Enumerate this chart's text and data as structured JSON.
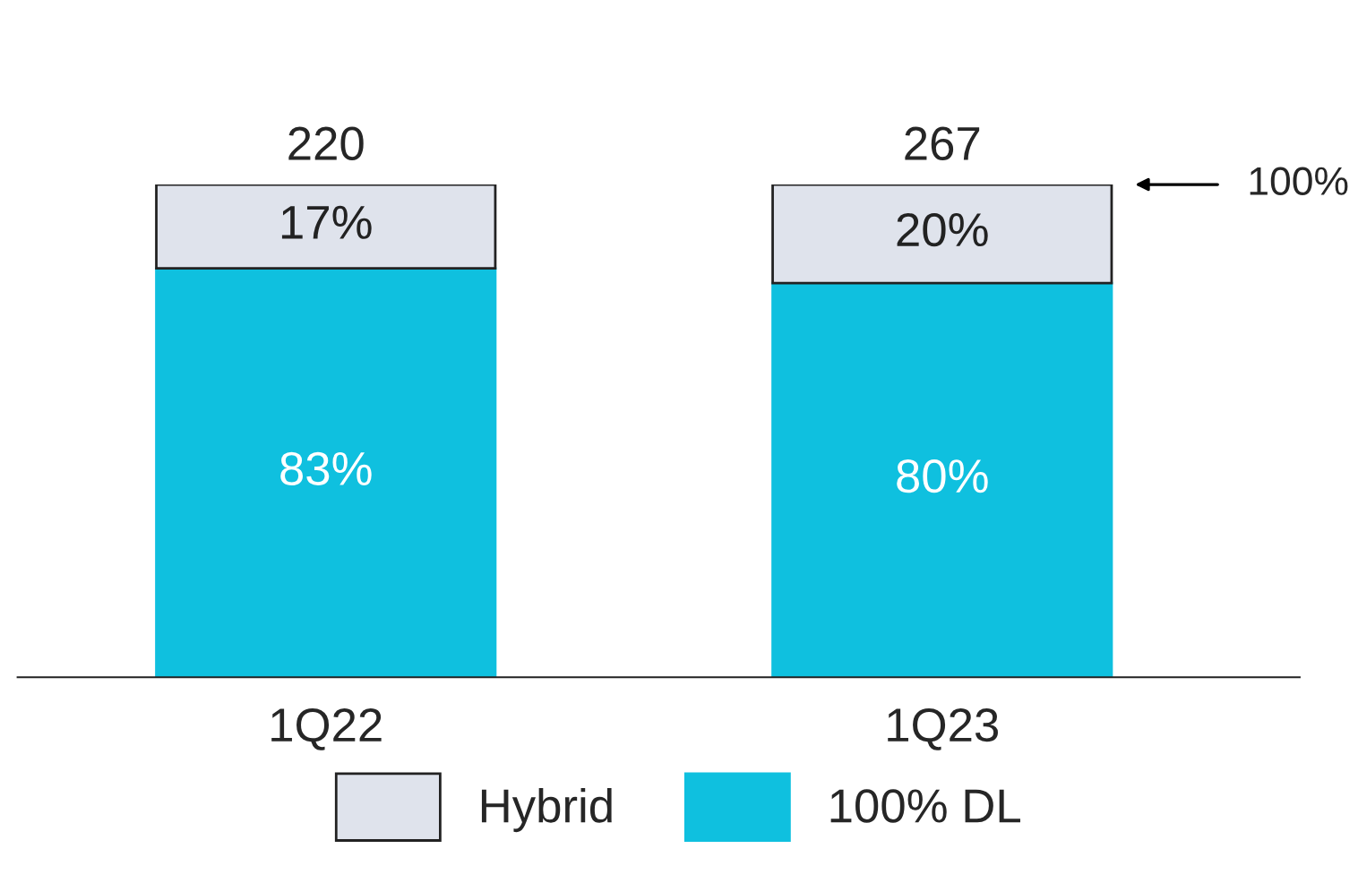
{
  "chart_data": {
    "type": "bar",
    "stacked": true,
    "categories": [
      "1Q22",
      "1Q23"
    ],
    "series": [
      {
        "name": "100% DL",
        "color": "#0fc0df",
        "values": [
          83,
          80
        ],
        "value_labels": [
          "83%",
          "80%"
        ]
      },
      {
        "name": "Hybrid",
        "color": "#dfe3ec",
        "values": [
          17,
          20
        ],
        "value_labels": [
          "17%",
          "20%"
        ]
      }
    ],
    "annotations": [
      {
        "text": "220",
        "x": "1Q22",
        "y": 100
      },
      {
        "text": "267",
        "x": "1Q23",
        "y": 100
      },
      "100%"
    ],
    "legend": "bottom"
  }
}
